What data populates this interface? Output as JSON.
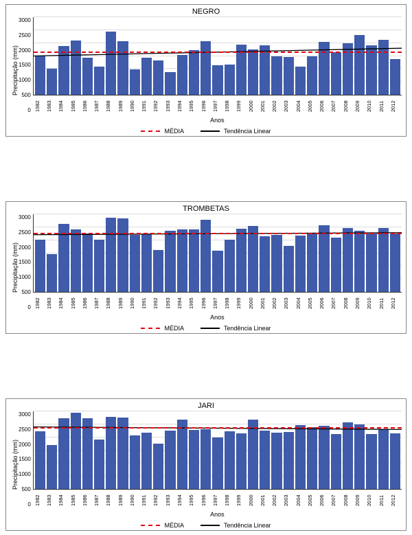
{
  "legend": {
    "mean": "MÉDIA",
    "trend": "Tendência Linear"
  },
  "axis": {
    "x": "Anos",
    "y": "Precipitação (mm)"
  },
  "years": [
    1982,
    1983,
    1984,
    1985,
    1986,
    1987,
    1988,
    1989,
    1990,
    1991,
    1992,
    1993,
    1994,
    1995,
    1996,
    1997,
    1998,
    1999,
    2000,
    2001,
    2002,
    2003,
    2004,
    2005,
    2006,
    2007,
    2008,
    2009,
    2010,
    2011,
    2012
  ],
  "common": {
    "ylim": [
      0,
      3000
    ],
    "ytick_step": 500,
    "bar_color": "#3f5ba9",
    "grid_color": "#dcdcdc",
    "mean_color": "#e30613",
    "trend_color": "#000000",
    "background_color": "#ffffff",
    "font_family": "Arial",
    "title_fontsize": 11,
    "label_fontsize": 9,
    "tick_fontsize": 8
  },
  "charts": [
    {
      "id": "negro",
      "title": "NEGRO",
      "type": "bar",
      "values": [
        1520,
        1020,
        1880,
        2100,
        1430,
        1100,
        2430,
        2070,
        980,
        1430,
        1320,
        870,
        1530,
        1720,
        2070,
        1150,
        1180,
        1950,
        1750,
        1900,
        1480,
        1450,
        1090,
        1500,
        2040,
        1640,
        1980,
        2320,
        1920,
        2130,
        1370
      ],
      "mean": 1630,
      "trend_start": 1500,
      "trend_end": 1800
    },
    {
      "id": "trombetas",
      "title": "TROMBETAS",
      "type": "bar",
      "values": [
        2020,
        1470,
        2620,
        2420,
        2250,
        2030,
        2880,
        2850,
        2210,
        2230,
        1630,
        2360,
        2420,
        2420,
        2790,
        1600,
        2020,
        2450,
        2560,
        2150,
        2200,
        1770,
        2170,
        2270,
        2570,
        2100,
        2460,
        2360,
        2250,
        2480,
        2260
      ],
      "mean": 2240,
      "trend_start": 2210,
      "trend_end": 2290
    },
    {
      "id": "jari",
      "title": "JARI",
      "type": "bar",
      "values": [
        2240,
        1700,
        2740,
        2950,
        2740,
        1920,
        2790,
        2770,
        2080,
        2170,
        1740,
        2270,
        2690,
        2280,
        2310,
        2000,
        2240,
        2150,
        2680,
        2260,
        2190,
        2210,
        2460,
        2390,
        2450,
        2130,
        2580,
        2500,
        2120,
        2320,
        2160
      ],
      "mean": 2340,
      "trend_start": 2400,
      "trend_end": 2300
    }
  ]
}
